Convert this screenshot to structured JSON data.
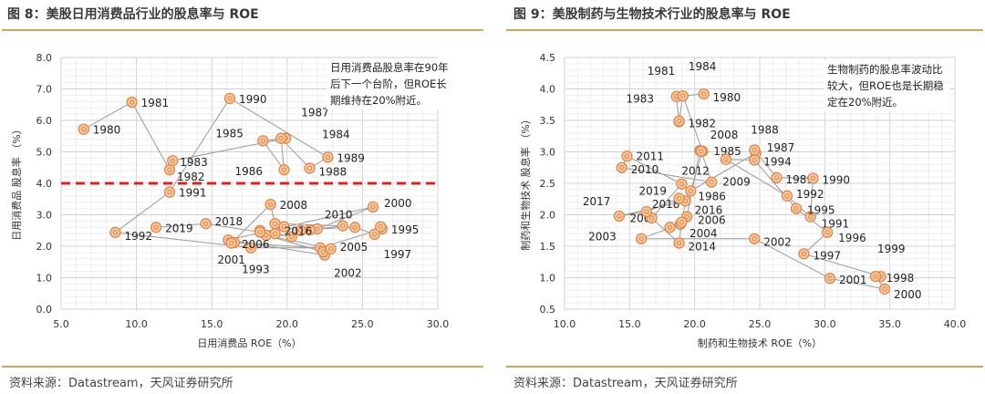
{
  "colors": {
    "accent_rule": "#c9a85c",
    "marker_fill": "#f6c9a0",
    "marker_stroke": "#e0864a",
    "connector": "#9a9a9a",
    "threshold": "#e02020"
  },
  "chart_data": [
    {
      "type": "scatter",
      "title": "图 8：美股日用消费品行业的股息率与 ROE",
      "xlabel": "日用消费品 ROE（%）",
      "ylabel": "日用消费品 股息率 （%）",
      "xlim": [
        5,
        30
      ],
      "ylim": [
        0,
        8
      ],
      "xticks": [
        "5.0",
        "10.0",
        "15.0",
        "20.0",
        "25.0",
        "30.0"
      ],
      "yticks": [
        "0.0",
        "1.0",
        "2.0",
        "3.0",
        "4.0",
        "5.0",
        "6.0",
        "7.0",
        "8.0"
      ],
      "grid": true,
      "connected": true,
      "threshold_y": 4.0,
      "note": [
        "日用消费品股息率在90年",
        "后下一个台阶，但ROE长",
        "期维持在20%附近。"
      ],
      "source": "资料来源：Datastream，天风证券研究所",
      "points": [
        {
          "label": "1980",
          "x": 6.5,
          "y": 5.72
        },
        {
          "label": "1981",
          "x": 9.7,
          "y": 6.58
        },
        {
          "label": "1982",
          "x": 12.2,
          "y": 4.43
        },
        {
          "label": "1983",
          "x": 12.4,
          "y": 4.72
        },
        {
          "label": "1984",
          "x": 19.9,
          "y": 5.43
        },
        {
          "label": "1985",
          "x": 18.4,
          "y": 5.35
        },
        {
          "label": "1986",
          "x": 19.8,
          "y": 4.43
        },
        {
          "label": "1987",
          "x": 19.6,
          "y": 5.43
        },
        {
          "label": "1988",
          "x": 21.5,
          "y": 4.48
        },
        {
          "label": "1989",
          "x": 22.7,
          "y": 4.83
        },
        {
          "label": "1990",
          "x": 16.2,
          "y": 6.7
        },
        {
          "label": "1991",
          "x": 12.2,
          "y": 3.72
        },
        {
          "label": "1992",
          "x": 8.6,
          "y": 2.44
        },
        {
          "label": "1993",
          "x": 17.6,
          "y": 1.95
        },
        {
          "label": "",
          "x": 22.2,
          "y": 1.95
        },
        {
          "label": "1995",
          "x": 26.3,
          "y": 2.55
        },
        {
          "label": "",
          "x": 26.2,
          "y": 2.62
        },
        {
          "label": "1997",
          "x": 25.8,
          "y": 2.38
        },
        {
          "label": "",
          "x": 24.5,
          "y": 2.6
        },
        {
          "label": "",
          "x": 22.0,
          "y": 2.55
        },
        {
          "label": "2000",
          "x": 25.7,
          "y": 3.25
        },
        {
          "label": "2001",
          "x": 16.1,
          "y": 2.2
        },
        {
          "label": "2002",
          "x": 22.5,
          "y": 1.72
        },
        {
          "label": "",
          "x": 22.4,
          "y": 1.82
        },
        {
          "label": "",
          "x": 18.6,
          "y": 2.35
        },
        {
          "label": "2005",
          "x": 22.9,
          "y": 1.92
        },
        {
          "label": "2006",
          "x": 16.5,
          "y": 2.12
        },
        {
          "label": "",
          "x": 16.3,
          "y": 2.1
        },
        {
          "label": "2008",
          "x": 18.9,
          "y": 3.33
        },
        {
          "label": "",
          "x": 19.2,
          "y": 2.72
        },
        {
          "label": "2010",
          "x": 23.7,
          "y": 2.65
        },
        {
          "label": "",
          "x": 21.5,
          "y": 2.52
        },
        {
          "label": "",
          "x": 20.9,
          "y": 2.5
        },
        {
          "label": "",
          "x": 19.8,
          "y": 2.62
        },
        {
          "label": "",
          "x": 19.2,
          "y": 2.4
        },
        {
          "label": "",
          "x": 18.2,
          "y": 2.5
        },
        {
          "label": "2016",
          "x": 20.3,
          "y": 2.3
        },
        {
          "label": "",
          "x": 18.2,
          "y": 2.45
        },
        {
          "label": "2018",
          "x": 14.6,
          "y": 2.72
        },
        {
          "label": "2019",
          "x": 11.3,
          "y": 2.6
        }
      ]
    },
    {
      "type": "scatter",
      "title": "图 9：美股制药与生物技术行业的股息率与 ROE",
      "xlabel": "制药和生物技术 ROE（%）",
      "ylabel": "制药和生物技术 股息率 （%）",
      "xlim": [
        10,
        40
      ],
      "ylim": [
        0.5,
        4.5
      ],
      "xticks": [
        "10.0",
        "15.0",
        "20.0",
        "25.0",
        "30.0",
        "35.0",
        "40.0"
      ],
      "yticks": [
        "0.5",
        "1.0",
        "1.5",
        "2.0",
        "2.5",
        "3.0",
        "3.5",
        "4.0",
        "4.5"
      ],
      "grid": true,
      "connected": true,
      "note": [
        "生物制药的股息率波动比",
        "较大，但ROE也是长期稳",
        "定在20%附近。"
      ],
      "source": "资料来源：Datastream，天风证券研究所",
      "points": [
        {
          "label": "1980",
          "x": 20.7,
          "y": 3.92
        },
        {
          "label": "1981",
          "x": 18.6,
          "y": 3.88
        },
        {
          "label": "1982",
          "x": 18.8,
          "y": 3.48
        },
        {
          "label": "1983",
          "x": 18.8,
          "y": 3.49
        },
        {
          "label": "1984",
          "x": 19.1,
          "y": 3.89
        },
        {
          "label": "1985",
          "x": 20.6,
          "y": 3.01
        },
        {
          "label": "1986",
          "x": 19.7,
          "y": 2.38
        },
        {
          "label": "1987",
          "x": 24.7,
          "y": 2.98
        },
        {
          "label": "1988",
          "x": 24.6,
          "y": 3.03
        },
        {
          "label": "1989",
          "x": 26.3,
          "y": 2.59
        },
        {
          "label": "1990",
          "x": 29.1,
          "y": 2.58
        },
        {
          "label": "1991",
          "x": 28.9,
          "y": 1.97
        },
        {
          "label": "1992",
          "x": 27.1,
          "y": 2.3
        },
        {
          "label": "",
          "x": 22.4,
          "y": 2.88
        },
        {
          "label": "1994",
          "x": 24.6,
          "y": 2.87
        },
        {
          "label": "1995",
          "x": 27.8,
          "y": 2.1
        },
        {
          "label": "1996",
          "x": 30.2,
          "y": 1.72
        },
        {
          "label": "1997",
          "x": 28.4,
          "y": 1.38
        },
        {
          "label": "1998",
          "x": 34.3,
          "y": 1.02
        },
        {
          "label": "1999",
          "x": 33.9,
          "y": 1.02
        },
        {
          "label": "2000",
          "x": 34.6,
          "y": 0.82
        },
        {
          "label": "2001",
          "x": 30.4,
          "y": 0.99
        },
        {
          "label": "2002",
          "x": 24.6,
          "y": 1.62
        },
        {
          "label": "2003",
          "x": 15.9,
          "y": 1.62
        },
        {
          "label": "2004",
          "x": 18.9,
          "y": 1.85
        },
        {
          "label": "2005",
          "x": 18.1,
          "y": 1.8
        },
        {
          "label": "2006",
          "x": 19.4,
          "y": 1.97
        },
        {
          "label": "",
          "x": 20.4,
          "y": 3.02
        },
        {
          "label": "2008",
          "x": 20.5,
          "y": 3.01
        },
        {
          "label": "2009",
          "x": 21.3,
          "y": 2.52
        },
        {
          "label": "2010",
          "x": 14.4,
          "y": 2.75
        },
        {
          "label": "2011",
          "x": 14.8,
          "y": 2.93
        },
        {
          "label": "2012",
          "x": 19.0,
          "y": 2.49
        },
        {
          "label": "",
          "x": 16.7,
          "y": 1.95
        },
        {
          "label": "2014",
          "x": 18.8,
          "y": 1.55
        },
        {
          "label": "",
          "x": 19.0,
          "y": 1.88
        },
        {
          "label": "2016",
          "x": 19.3,
          "y": 2.22
        },
        {
          "label": "2017",
          "x": 14.2,
          "y": 1.98
        },
        {
          "label": "2018",
          "x": 16.3,
          "y": 2.05
        },
        {
          "label": "2019",
          "x": 18.8,
          "y": 2.26
        }
      ]
    }
  ]
}
